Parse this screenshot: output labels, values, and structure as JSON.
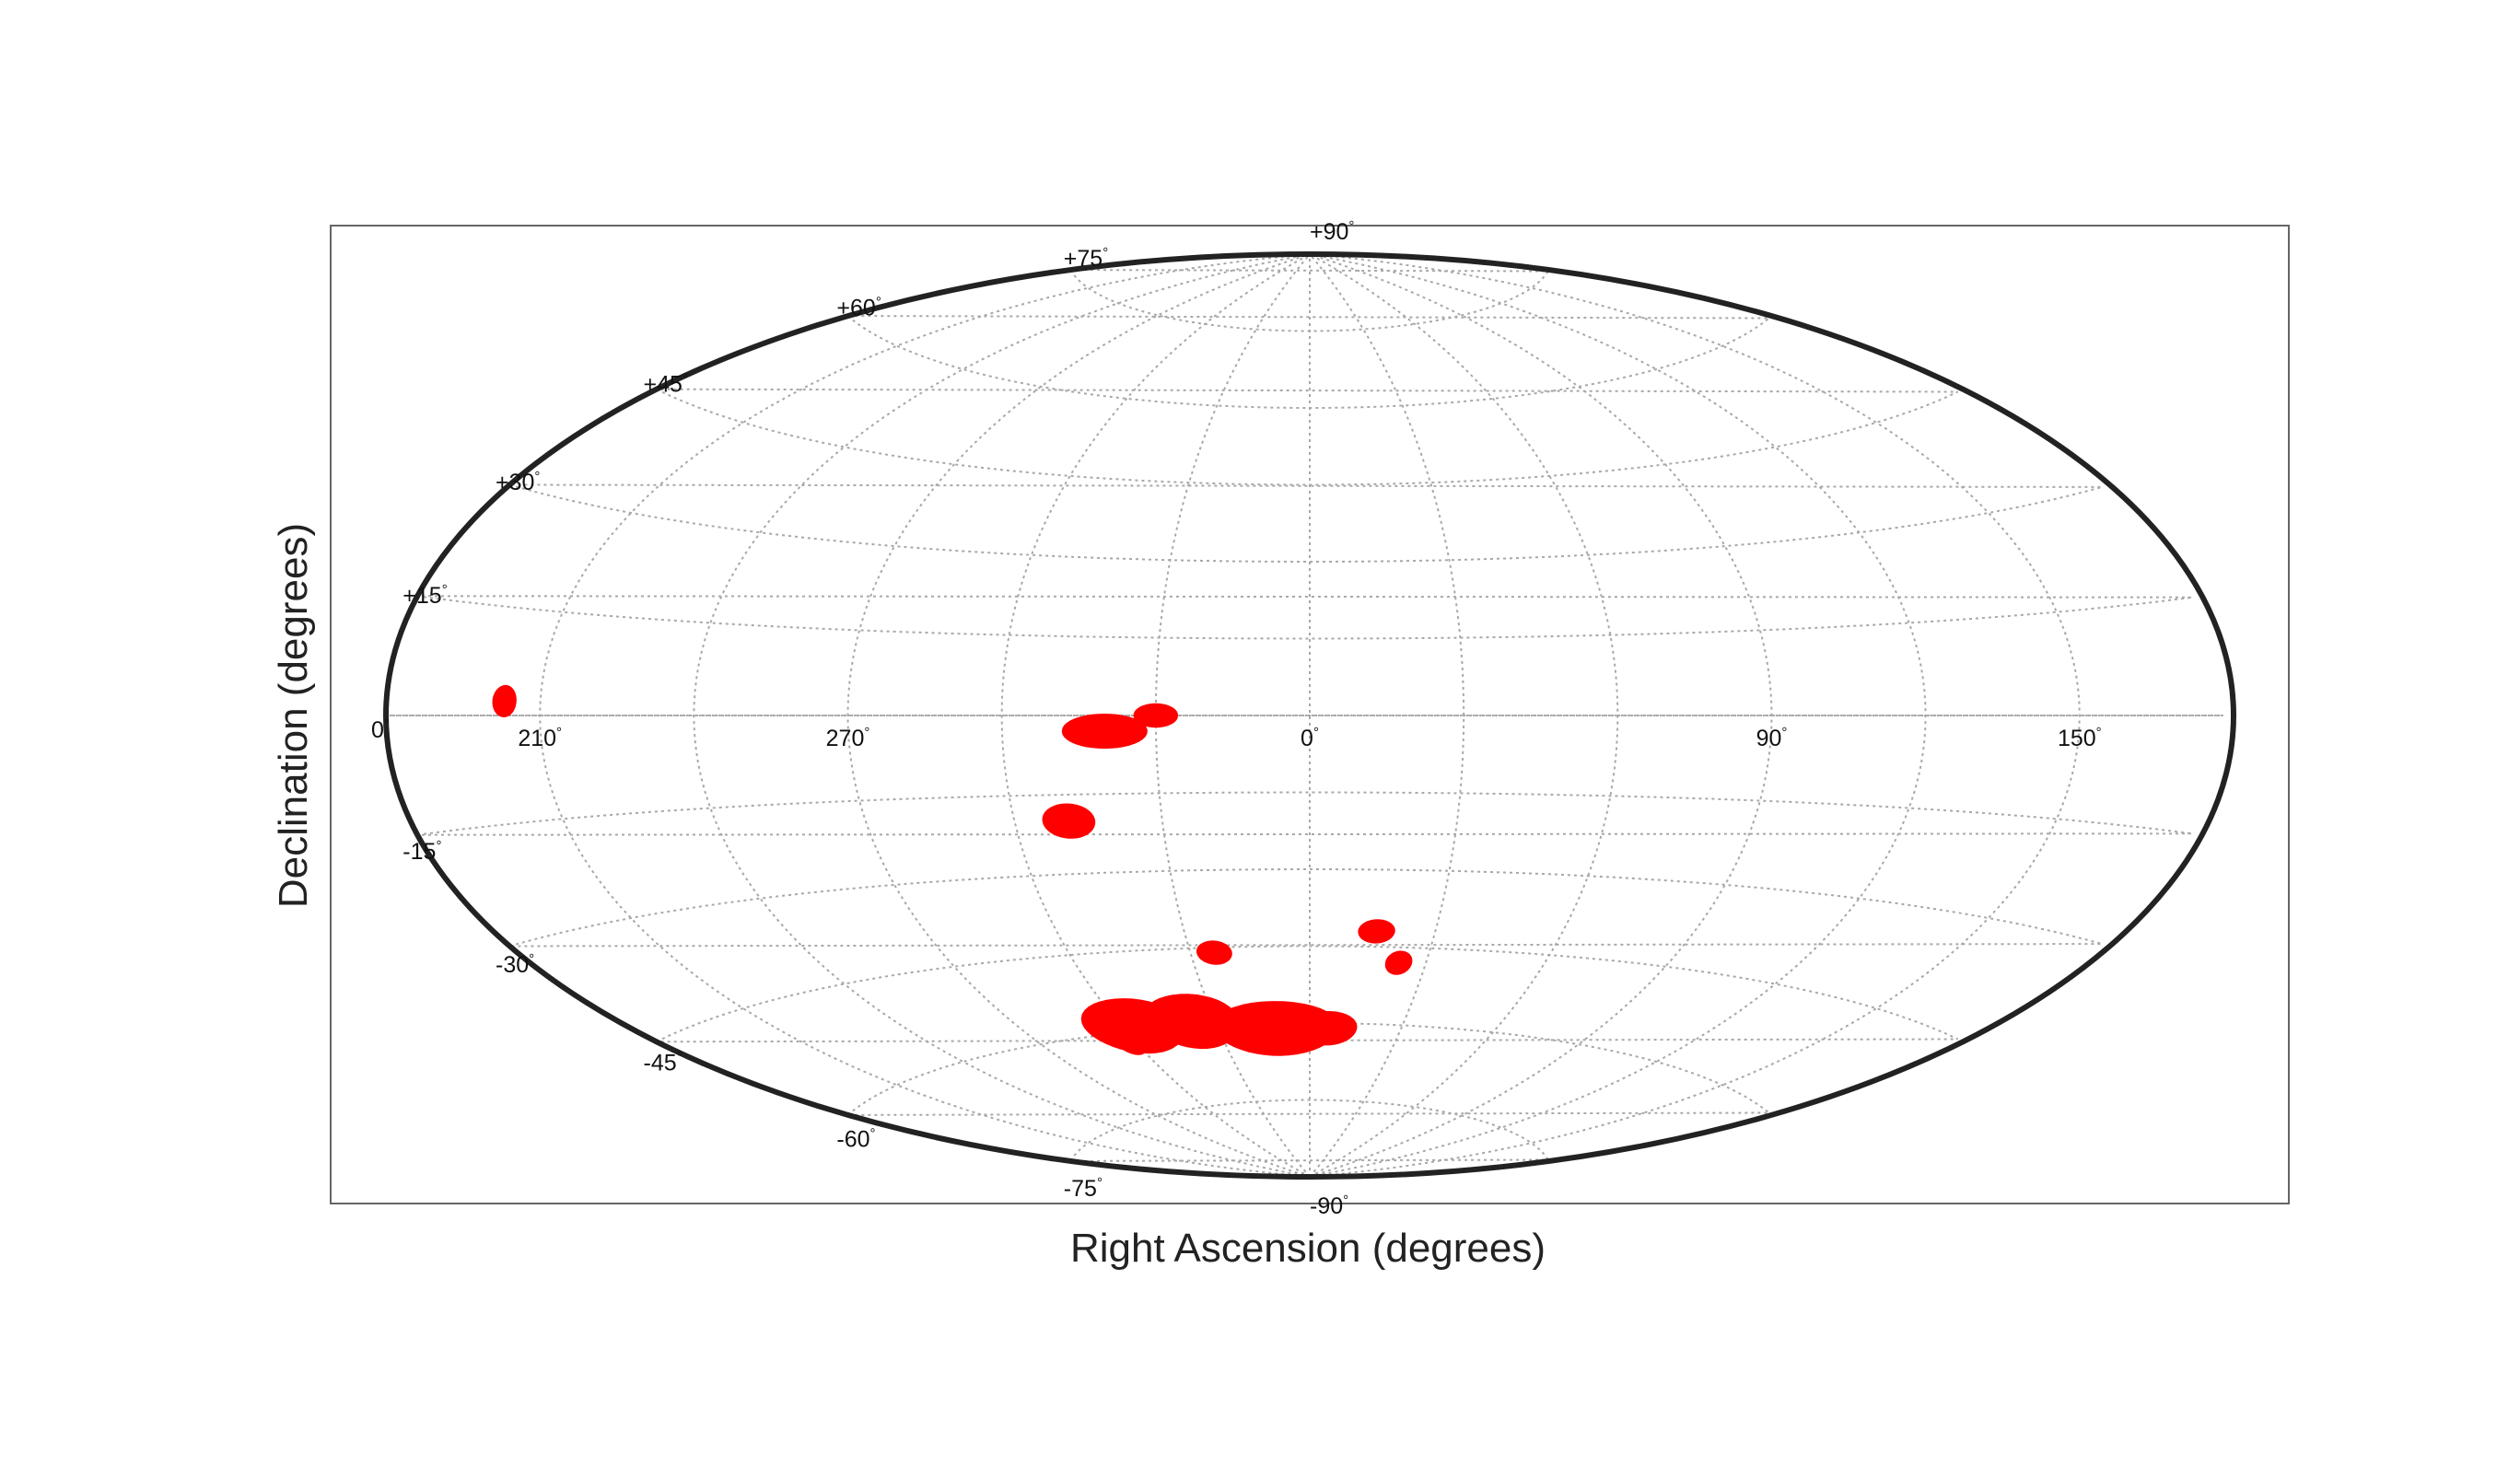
{
  "chart_data": {
    "type": "scatter",
    "projection": "aitoff",
    "xlabel": "Right Ascension (degrees)",
    "ylabel": "Declination (degrees)",
    "grid": true,
    "ra_range": [
      -180,
      180
    ],
    "dec_range": [
      -90,
      90
    ],
    "ra_tick_labels": [
      {
        "ra": 150,
        "label": "150"
      },
      {
        "ra": 90,
        "label": "90"
      },
      {
        "ra": 0,
        "label": "0"
      },
      {
        "ra": 270,
        "label": "270"
      },
      {
        "ra": 210,
        "label": "210"
      }
    ],
    "dec_tick_labels": [
      {
        "dec": 90,
        "label": "+90"
      },
      {
        "dec": 75,
        "label": "+75"
      },
      {
        "dec": 60,
        "label": "+60"
      },
      {
        "dec": 45,
        "label": "+45"
      },
      {
        "dec": 30,
        "label": "+30"
      },
      {
        "dec": 15,
        "label": "+15"
      },
      {
        "dec": 0,
        "label": "0"
      },
      {
        "dec": -15,
        "label": "-15"
      },
      {
        "dec": -30,
        "label": "-30"
      },
      {
        "dec": -45,
        "label": "-45"
      },
      {
        "dec": -60,
        "label": "-60"
      },
      {
        "dec": -75,
        "label": "-75"
      },
      {
        "dec": -90,
        "label": "-90"
      }
    ],
    "regions": [
      {
        "ra": 320,
        "dec": -3,
        "d_ra": 8,
        "d_dec": 3
      },
      {
        "ra": 330,
        "dec": 0,
        "d_ra": 4,
        "d_dec": 2
      },
      {
        "ra": 203,
        "dec": 2,
        "d_ra": 2,
        "d_dec": 2
      },
      {
        "ra": 311,
        "dec": -20,
        "d_ra": 5,
        "d_dec": 3
      },
      {
        "ra": 16,
        "dec": -42,
        "d_ra": 4,
        "d_dec": 2
      },
      {
        "ra": 23,
        "dec": -48,
        "d_ra": 3,
        "d_dec": 2
      },
      {
        "ra": 336,
        "dec": -46,
        "d_ra": 4,
        "d_dec": 2
      },
      {
        "ra": 349,
        "dec": -61,
        "d_ra": 20,
        "d_dec": 5
      },
      {
        "ra": 6,
        "dec": -61,
        "d_ra": 9,
        "d_dec": 3
      },
      {
        "ra": 298,
        "dec": -62,
        "d_ra": 4,
        "d_dec": 2
      },
      {
        "ra": 323,
        "dec": -59,
        "d_ra": 14,
        "d_dec": 5
      },
      {
        "ra": 304,
        "dec": -59,
        "d_ra": 15,
        "d_dec": 5
      }
    ],
    "region_color": "#ff0000"
  }
}
